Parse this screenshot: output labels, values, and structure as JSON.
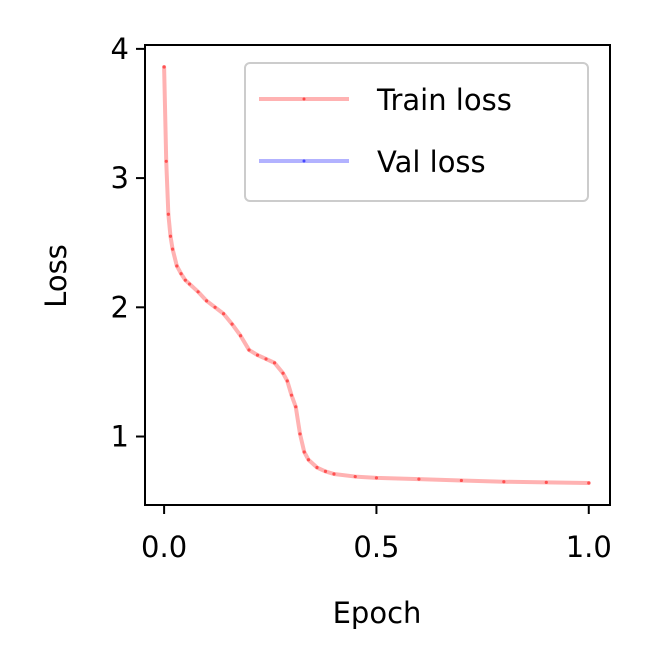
{
  "chart_data": {
    "type": "line",
    "xlabel": "Epoch",
    "ylabel": "Loss",
    "xlim": [
      -0.045,
      1.05
    ],
    "ylim": [
      0.47,
      4.03
    ],
    "xticks": [
      {
        "value": 0.0,
        "label": "0.0"
      },
      {
        "value": 0.5,
        "label": "0.5"
      },
      {
        "value": 1.0,
        "label": "1.0"
      }
    ],
    "yticks": [
      {
        "value": 1,
        "label": "1"
      },
      {
        "value": 2,
        "label": "2"
      },
      {
        "value": 3,
        "label": "3"
      },
      {
        "value": 4,
        "label": "4"
      }
    ],
    "grid": false,
    "legend": {
      "position": "top-right"
    },
    "series": [
      {
        "name": "Train loss",
        "color": "#ff0000",
        "x": [
          0.0,
          0.005,
          0.01,
          0.015,
          0.02,
          0.03,
          0.04,
          0.05,
          0.06,
          0.08,
          0.1,
          0.12,
          0.14,
          0.16,
          0.18,
          0.2,
          0.22,
          0.24,
          0.26,
          0.28,
          0.29,
          0.3,
          0.31,
          0.32,
          0.33,
          0.34,
          0.36,
          0.38,
          0.4,
          0.45,
          0.5,
          0.6,
          0.7,
          0.8,
          0.9,
          1.0
        ],
        "values": [
          3.86,
          3.13,
          2.72,
          2.55,
          2.45,
          2.32,
          2.26,
          2.21,
          2.18,
          2.12,
          2.05,
          2.0,
          1.95,
          1.87,
          1.78,
          1.67,
          1.63,
          1.6,
          1.57,
          1.49,
          1.43,
          1.32,
          1.23,
          1.02,
          0.88,
          0.82,
          0.76,
          0.73,
          0.71,
          0.69,
          0.68,
          0.67,
          0.66,
          0.65,
          0.645,
          0.64
        ]
      },
      {
        "name": "Val loss",
        "color": "#0000ff",
        "x": [],
        "values": []
      }
    ]
  }
}
